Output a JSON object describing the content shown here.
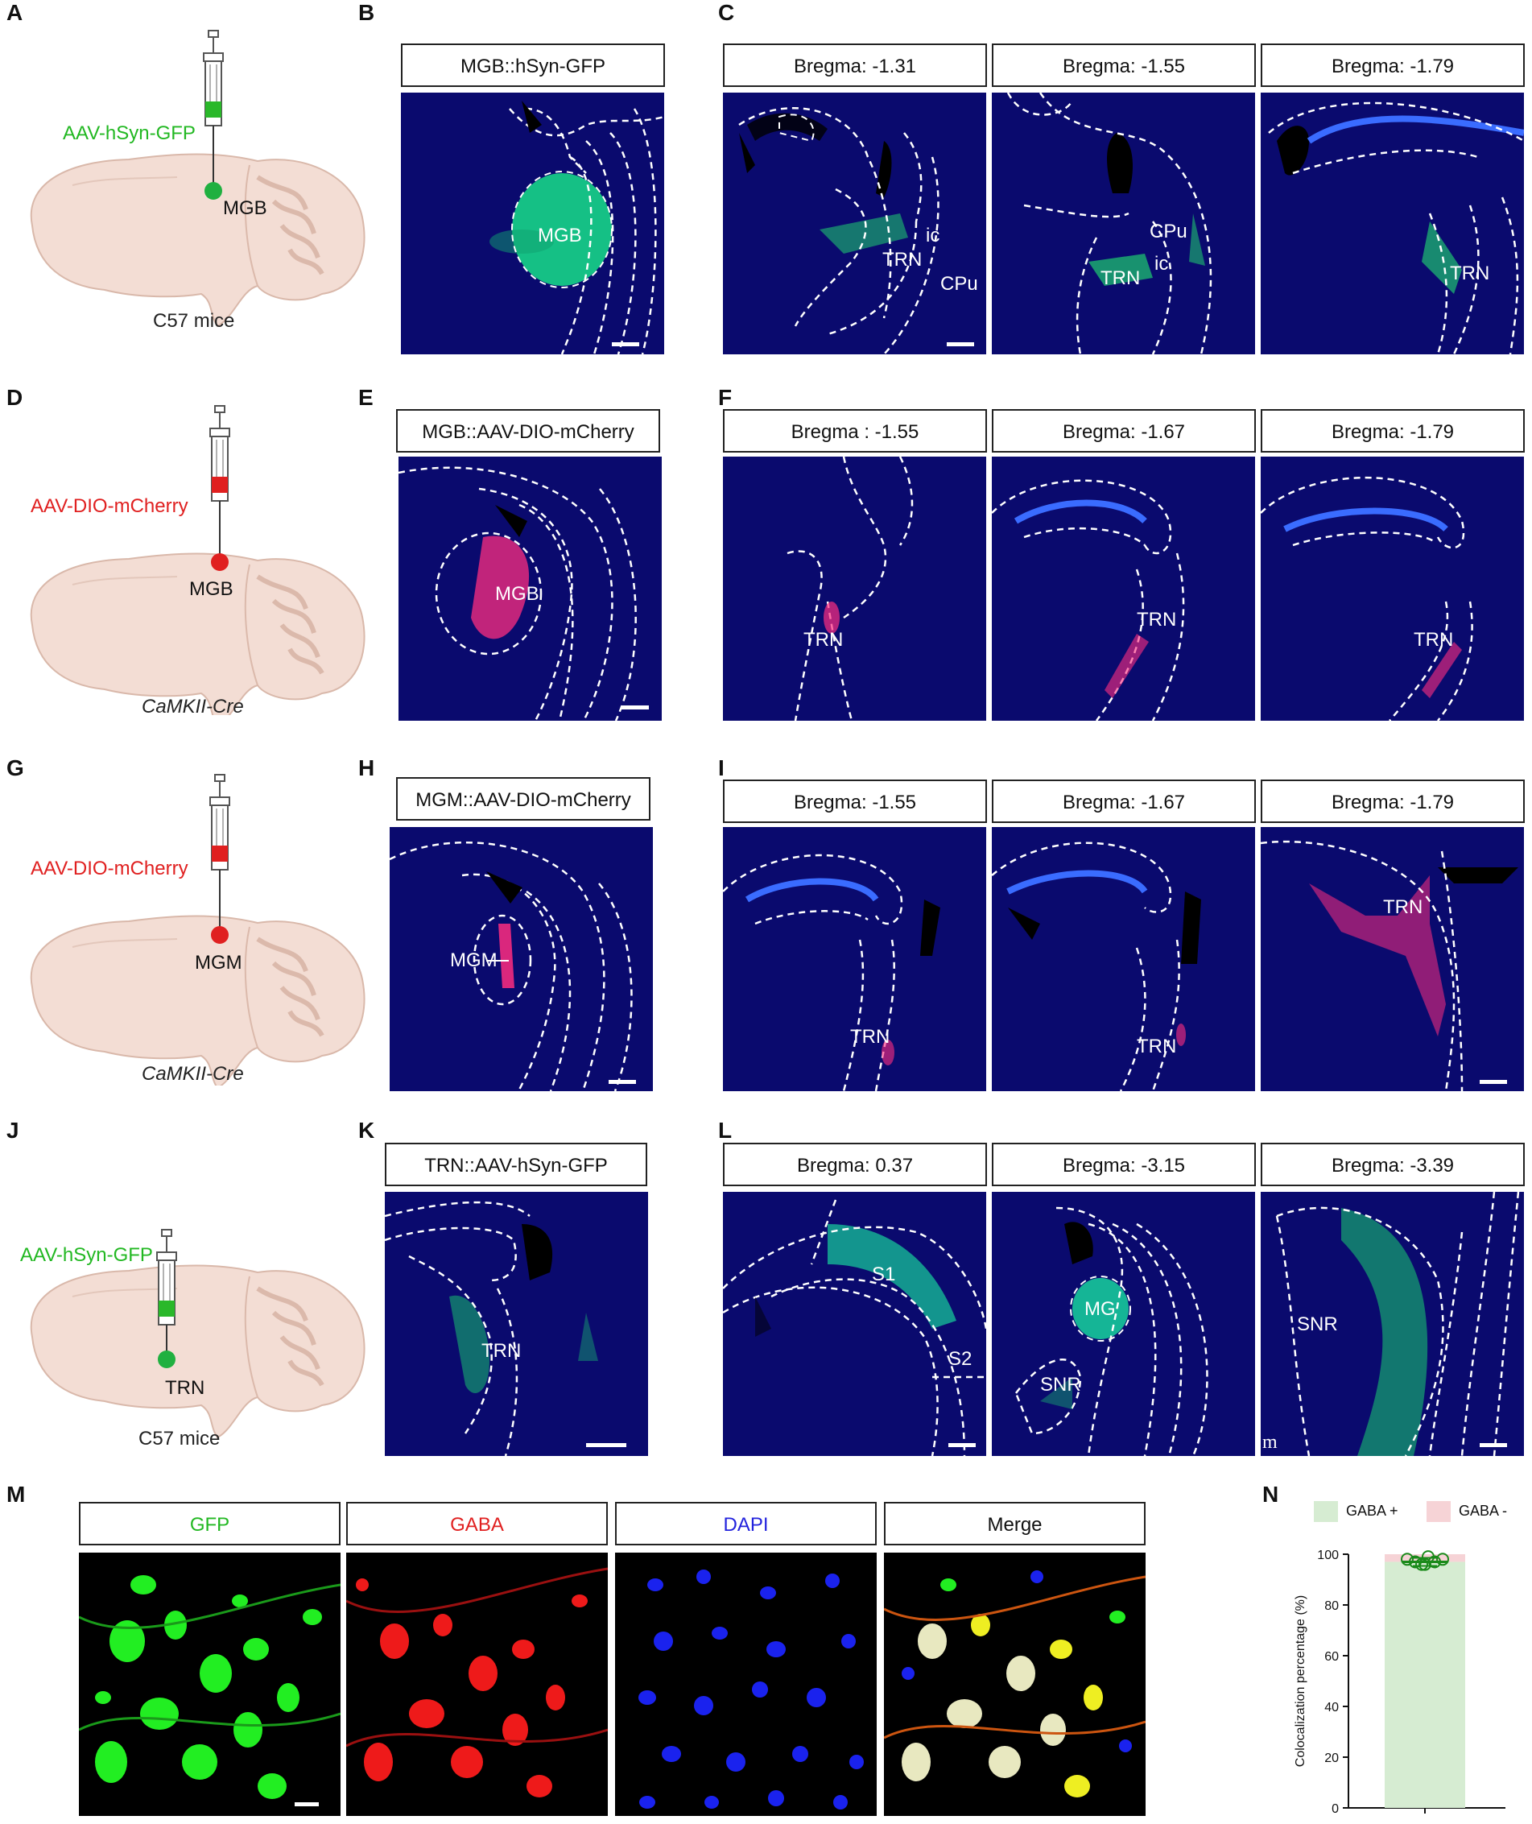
{
  "panels": {
    "A": "A",
    "B": "B",
    "C": "C",
    "D": "D",
    "E": "E",
    "F": "F",
    "G": "G",
    "H": "H",
    "I": "I",
    "J": "J",
    "K": "K",
    "L": "L",
    "M": "M",
    "N": "N"
  },
  "row1": {
    "virus": "AAV-hSyn-GFP",
    "target": "MGB",
    "mouse": "C57 mice",
    "B_title": "MGB::hSyn-GFP",
    "B_region": "MGB",
    "C_titles": [
      "Bregma: -1.31",
      "Bregma: -1.55",
      "Bregma: -1.79"
    ],
    "C_labels": {
      "c1_trn": "TRN",
      "c1_ic": "ic",
      "c1_cpu": "CPu",
      "c2_cpu": "CPu",
      "c2_ic": "ic",
      "c2_trn": "TRN",
      "c3_trn": "TRN"
    }
  },
  "row2": {
    "virus": "AAV-DIO-mCherry",
    "target": "MGB",
    "mouse": "CaMKII-Cre",
    "E_title": "MGB::AAV-DIO-mCherry",
    "E_region": "MGB",
    "F_titles": [
      "Bregma : -1.55",
      "Bregma:  -1.67",
      "Bregma: -1.79"
    ],
    "F_labels": [
      "TRN",
      "TRN",
      "TRN"
    ]
  },
  "row3": {
    "virus": "AAV-DIO-mCherry",
    "target": "MGM",
    "mouse": "CaMKII-Cre",
    "H_title": "MGM::AAV-DIO-mCherry",
    "H_region": "MGM",
    "I_titles": [
      "Bregma:  -1.55",
      "Bregma:  -1.67",
      "Bregma: -1.79"
    ],
    "I_labels": [
      "TRN",
      "TRN",
      "TRN"
    ]
  },
  "row4": {
    "virus": "AAV-hSyn-GFP",
    "target": "TRN",
    "mouse": "C57 mice",
    "K_title": "TRN::AAV-hSyn-GFP",
    "K_region": "TRN",
    "L_titles": [
      "Bregma: 0.37",
      "Bregma: -3.15",
      "Bregma: -3.39"
    ],
    "L_labels": {
      "s1": "S1",
      "s2": "S2",
      "mg": "MG",
      "snr1": "SNR",
      "snr2": "SNR",
      "m": "m"
    }
  },
  "row5": {
    "M_titles": [
      "GFP",
      "GABA",
      "DAPI",
      "Merge"
    ]
  },
  "colors": {
    "green": "#22b822",
    "red": "#e02020",
    "blue": "#2222dd",
    "tissue": "#0a0a6e",
    "brain": "#f3ddd4"
  },
  "chart_data": {
    "type": "bar",
    "legend": [
      "GABA +",
      "GABA -"
    ],
    "ylabel": "Colocalization percentage (%)",
    "ylim": [
      0,
      100
    ],
    "yticks": [
      "0",
      "20",
      "40",
      "60",
      "80",
      "100"
    ],
    "series": [
      {
        "name": "GABA +",
        "values": [
          97
        ],
        "color": "#d6ecd2"
      },
      {
        "name": "GABA -",
        "values": [
          3
        ],
        "color": "#f6d3d6"
      }
    ],
    "points": [
      98,
      97,
      96,
      99,
      97,
      98,
      96
    ],
    "mean": 97
  }
}
